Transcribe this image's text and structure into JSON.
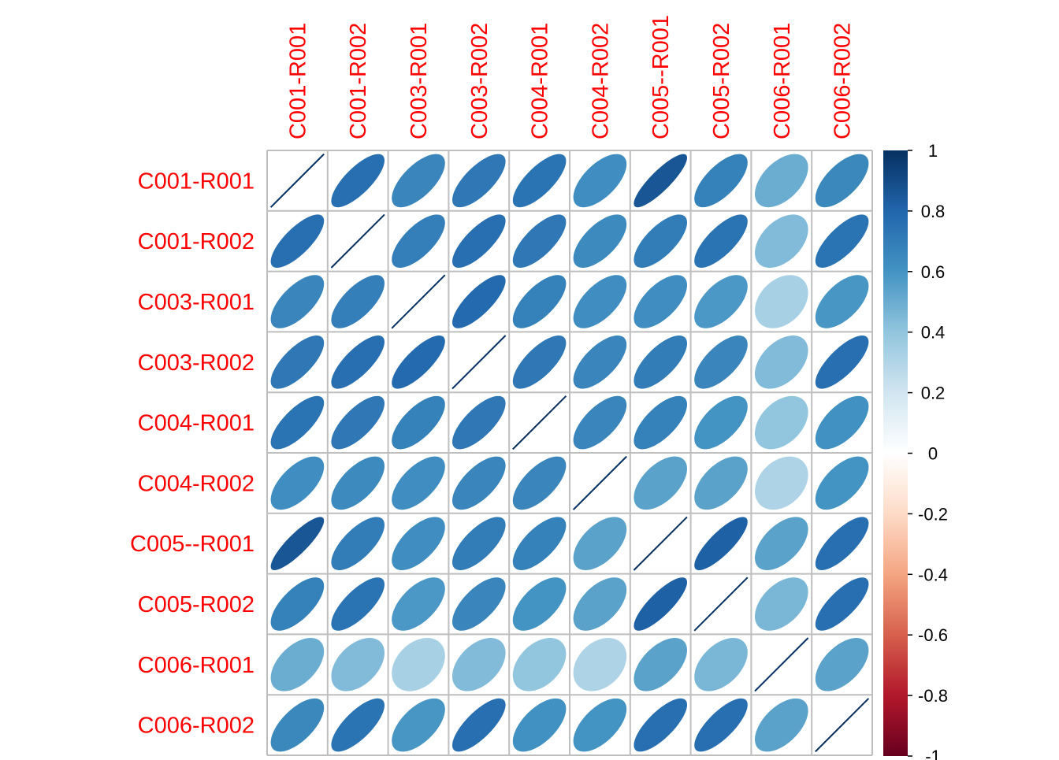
{
  "chart_data": {
    "type": "heatmap",
    "method": "ellipse",
    "title": "",
    "labels": [
      "C001-R001",
      "C001-R002",
      "C003-R001",
      "C003-R002",
      "C004-R001",
      "C004-R002",
      "C005--R001",
      "C005-R002",
      "C006-R001",
      "C006-R002"
    ],
    "matrix": [
      [
        1.0,
        0.76,
        0.66,
        0.72,
        0.74,
        0.62,
        0.86,
        0.68,
        0.5,
        0.65
      ],
      [
        0.76,
        1.0,
        0.69,
        0.76,
        0.72,
        0.64,
        0.7,
        0.74,
        0.44,
        0.74
      ],
      [
        0.66,
        0.69,
        1.0,
        0.78,
        0.68,
        0.62,
        0.62,
        0.58,
        0.33,
        0.59
      ],
      [
        0.72,
        0.76,
        0.78,
        1.0,
        0.72,
        0.66,
        0.7,
        0.66,
        0.44,
        0.76
      ],
      [
        0.74,
        0.72,
        0.68,
        0.72,
        1.0,
        0.66,
        0.68,
        0.6,
        0.4,
        0.61
      ],
      [
        0.62,
        0.64,
        0.62,
        0.66,
        0.66,
        1.0,
        0.54,
        0.54,
        0.31,
        0.6
      ],
      [
        0.86,
        0.7,
        0.62,
        0.7,
        0.68,
        0.54,
        1.0,
        0.82,
        0.54,
        0.76
      ],
      [
        0.68,
        0.74,
        0.58,
        0.66,
        0.6,
        0.54,
        0.82,
        1.0,
        0.46,
        0.76
      ],
      [
        0.5,
        0.44,
        0.33,
        0.44,
        0.4,
        0.31,
        0.54,
        0.46,
        1.0,
        0.54
      ],
      [
        0.65,
        0.74,
        0.59,
        0.76,
        0.61,
        0.6,
        0.76,
        0.76,
        0.54,
        1.0
      ]
    ],
    "label_color": "#FF0000",
    "grid": true,
    "colorbar": {
      "position": "right",
      "range": [
        -1,
        1
      ],
      "ticks": [
        "1",
        "0.8",
        "0.6",
        "0.4",
        "0.2",
        "0",
        "-0.2",
        "-0.4",
        "-0.6",
        "-0.8",
        "-1"
      ],
      "colors": [
        "#67001F",
        "#B2182B",
        "#D6604D",
        "#F4A582",
        "#FDDBC7",
        "#FFFFFF",
        "#D1E5F0",
        "#92C5DE",
        "#4393C3",
        "#2166AC",
        "#053061"
      ]
    }
  }
}
